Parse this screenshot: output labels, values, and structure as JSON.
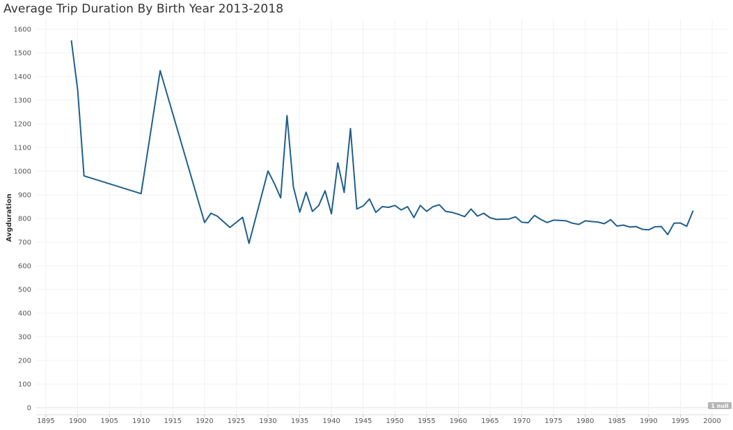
{
  "chart_data": {
    "type": "line",
    "title": "Average Trip Duration By Birth Year 2013-2018",
    "ylabel": "Avgduration",
    "xlim": [
      1893,
      2004
    ],
    "ylim": [
      0,
      1620
    ],
    "x_ticks": [
      1895,
      1900,
      1905,
      1910,
      1915,
      1920,
      1925,
      1930,
      1935,
      1940,
      1945,
      1950,
      1955,
      1960,
      1965,
      1970,
      1975,
      1980,
      1985,
      1990,
      1995,
      2000
    ],
    "y_ticks": [
      0,
      100,
      200,
      300,
      400,
      500,
      600,
      700,
      800,
      900,
      1000,
      1100,
      1200,
      1300,
      1400,
      1500,
      1600
    ],
    "grid": true,
    "line_color": "#1f5f8b",
    "null_indicator": "1 null",
    "series": [
      {
        "x": [
          1899,
          1900,
          1901,
          1910,
          1913,
          1920,
          1921,
          1922,
          1924,
          1926,
          1927,
          1930,
          1931,
          1932,
          1933,
          1934,
          1935,
          1936,
          1937,
          1938,
          1939,
          1940,
          1941,
          1942,
          1943,
          1944,
          1945,
          1946,
          1947,
          1948,
          1949,
          1950,
          1951,
          1952,
          1953,
          1954,
          1955,
          1956,
          1957,
          1958,
          1959,
          1960,
          1961,
          1962,
          1963,
          1964,
          1965,
          1966,
          1967,
          1968,
          1969,
          1970,
          1971,
          1972,
          1973,
          1974,
          1975,
          1976,
          1977,
          1978,
          1979,
          1980,
          1981,
          1982,
          1983,
          1984,
          1985,
          1986,
          1987,
          1988,
          1989,
          1990,
          1991,
          1992,
          1993,
          1994,
          1995,
          1996,
          1997
        ],
        "values": [
          1553,
          1343,
          980,
          905,
          1425,
          783,
          822,
          810,
          762,
          805,
          695,
          1001,
          948,
          887,
          1235,
          933,
          827,
          911,
          830,
          855,
          917,
          820,
          1035,
          910,
          1180,
          840,
          853,
          882,
          826,
          850,
          847,
          855,
          836,
          850,
          804,
          855,
          830,
          850,
          858,
          830,
          826,
          818,
          808,
          840,
          810,
          822,
          803,
          796,
          797,
          798,
          807,
          784,
          782,
          813,
          796,
          783,
          793,
          792,
          790,
          780,
          775,
          790,
          787,
          785,
          778,
          795,
          768,
          772,
          764,
          766,
          754,
          752,
          765,
          766,
          732,
          780,
          781,
          767,
          833
        ]
      }
    ]
  }
}
